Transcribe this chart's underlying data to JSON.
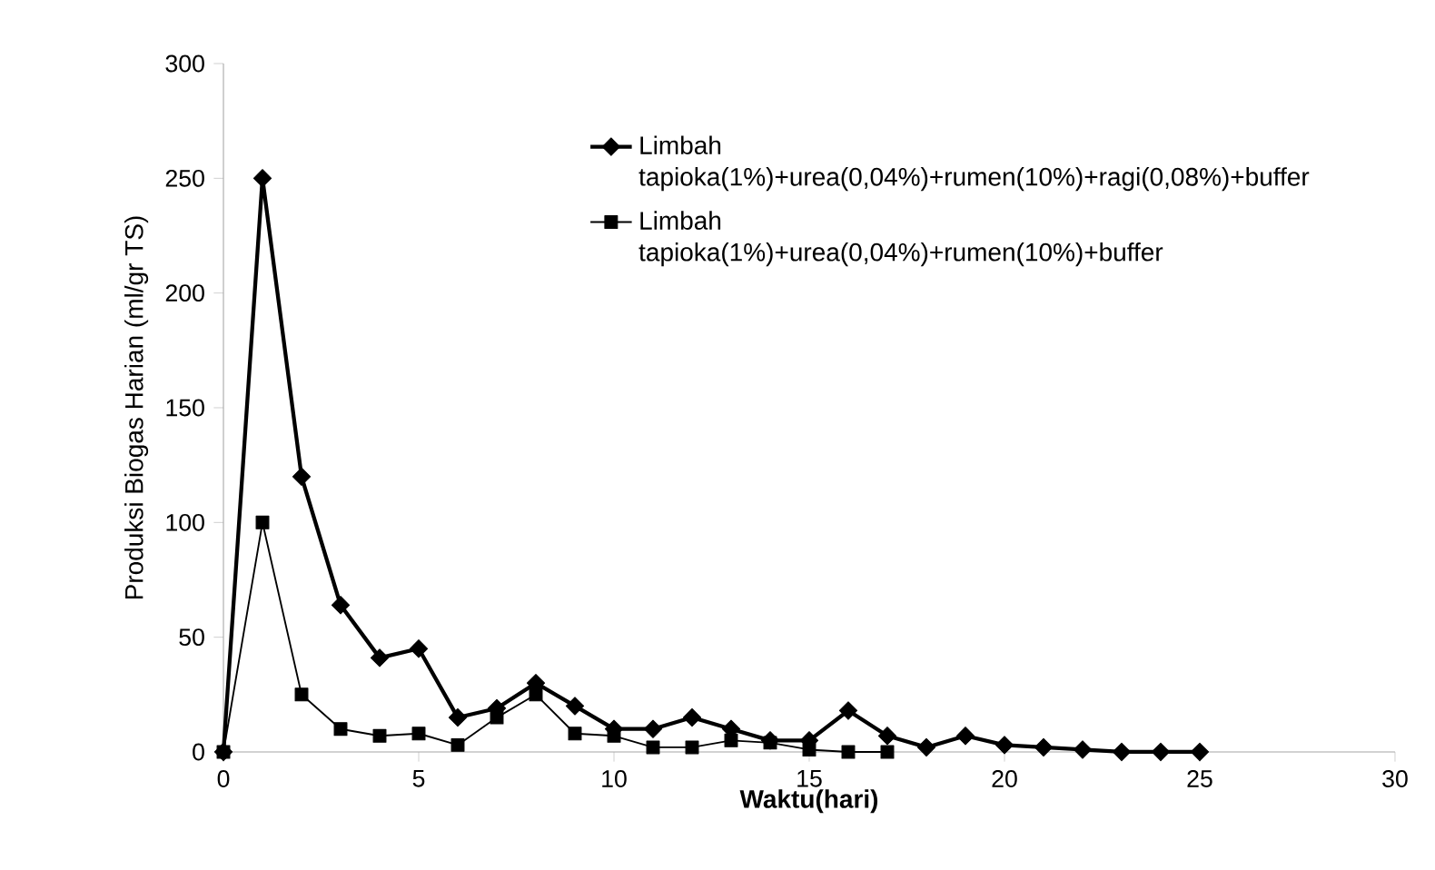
{
  "chart_data": {
    "type": "line",
    "xlabel": "Waktu(hari)",
    "ylabel": "Produksi Biogas Harian (ml/gr TS)",
    "xlim": [
      0,
      30
    ],
    "xticks": [
      0,
      5,
      10,
      15,
      20,
      25,
      30
    ],
    "ylim": [
      0,
      300
    ],
    "yticks": [
      0,
      50,
      100,
      150,
      200,
      250,
      300
    ],
    "grid": false,
    "legend": "top right",
    "series": [
      {
        "name": "Limbah tapioka(1%)+urea(0,04%)+rumen(10%)+ragi(0,08%)+buffer",
        "color": "#000000",
        "marker": "diamond",
        "x": [
          0,
          1,
          2,
          3,
          4,
          5,
          6,
          7,
          8,
          9,
          10,
          11,
          12,
          13,
          14,
          15,
          16,
          17,
          18,
          19,
          20,
          21,
          22,
          23,
          24,
          25
        ],
        "values": [
          0,
          250,
          120,
          64,
          41,
          45,
          15,
          19,
          30,
          20,
          10,
          10,
          15,
          10,
          5,
          5,
          18,
          7,
          2,
          7,
          3,
          2,
          1,
          0,
          0,
          0
        ]
      },
      {
        "name": "Limbah tapioka(1%)+urea(0,04%)+rumen(10%)+buffer",
        "color": "#000000",
        "marker": "square",
        "x": [
          0,
          1,
          2,
          3,
          4,
          5,
          6,
          7,
          8,
          9,
          10,
          11,
          12,
          13,
          14,
          15,
          16,
          17
        ],
        "values": [
          0,
          100,
          25,
          10,
          7,
          8,
          3,
          15,
          25,
          8,
          7,
          2,
          2,
          5,
          4,
          1,
          0,
          0
        ]
      }
    ]
  }
}
